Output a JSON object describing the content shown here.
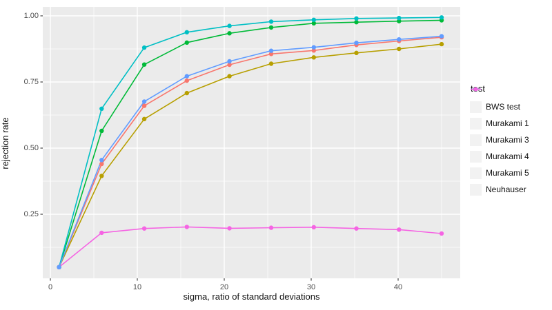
{
  "figure": {
    "background": "#ffffff",
    "panel_background": "#ebebeb",
    "grid_color": "#ffffff",
    "tick_mark_color": "#333333",
    "axis_text_color": "#4d4d4d",
    "axis_title_color": "#111111"
  },
  "legend": {
    "title": "test",
    "key_background": "#f2f2f2"
  },
  "chart_data": {
    "type": "line",
    "title": "",
    "xlabel": "sigma, ratio of standard deviations",
    "ylabel": "rejection rate",
    "x": [
      1,
      5.9,
      10.8,
      15.7,
      20.6,
      25.4,
      30.3,
      35.2,
      40.1,
      45
    ],
    "series": [
      {
        "name": "BWS test",
        "color": "#F8766D",
        "values": [
          0.05,
          0.44,
          0.66,
          0.755,
          0.815,
          0.856,
          0.869,
          0.89,
          0.905,
          0.919
        ]
      },
      {
        "name": "Murakami 1",
        "color": "#B79F00",
        "values": [
          0.05,
          0.395,
          0.61,
          0.708,
          0.772,
          0.819,
          0.843,
          0.86,
          0.875,
          0.893
        ]
      },
      {
        "name": "Murakami 3",
        "color": "#00BA38",
        "values": [
          0.05,
          0.565,
          0.816,
          0.899,
          0.934,
          0.956,
          0.972,
          0.976,
          0.98,
          0.983
        ]
      },
      {
        "name": "Murakami 4",
        "color": "#00BFC4",
        "values": [
          0.05,
          0.649,
          0.88,
          0.938,
          0.962,
          0.978,
          0.985,
          0.99,
          0.992,
          0.994
        ]
      },
      {
        "name": "Murakami 5",
        "color": "#619CFF",
        "values": [
          0.05,
          0.455,
          0.676,
          0.772,
          0.828,
          0.868,
          0.881,
          0.898,
          0.911,
          0.923
        ]
      },
      {
        "name": "Neuhauser",
        "color": "#F564E3",
        "values": [
          0.05,
          0.18,
          0.196,
          0.202,
          0.197,
          0.199,
          0.201,
          0.196,
          0.192,
          0.177
        ]
      }
    ],
    "x_ticks": [
      0,
      10,
      20,
      30,
      40
    ],
    "x_tick_labels": [
      "0",
      "10",
      "20",
      "30",
      "40"
    ],
    "x_minor_ticks": [
      5,
      15,
      25,
      35,
      45
    ],
    "y_ticks": [
      0.25,
      0.5,
      0.75,
      1.0
    ],
    "y_tick_labels": [
      "0.25",
      "0.50",
      "0.75",
      "1.00"
    ],
    "y_minor_ticks": [
      0.125,
      0.375,
      0.625,
      0.875
    ],
    "xlim": [
      -0.9,
      47.0
    ],
    "ylim": [
      0.008,
      1.034
    ],
    "grid": true,
    "legend_position": "right"
  }
}
